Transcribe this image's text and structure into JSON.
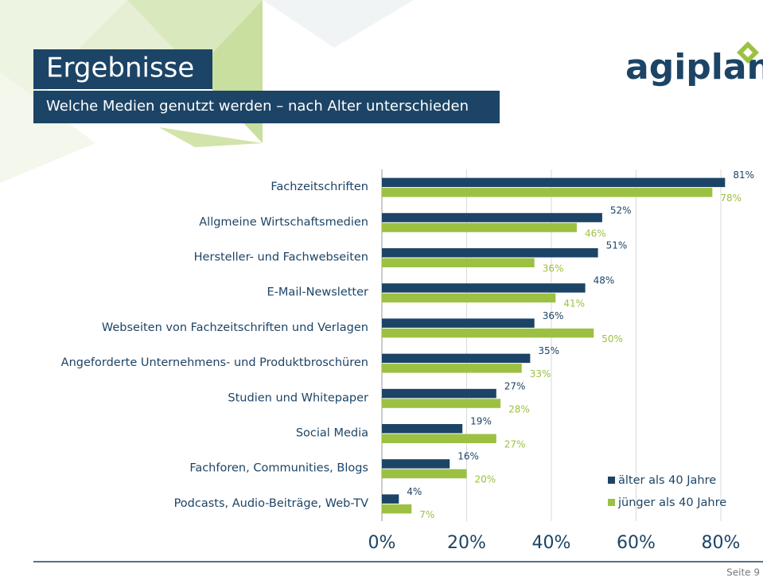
{
  "chart_data": {
    "type": "hbar",
    "title": "Ergebnisse",
    "subtitle": "Welche Medien genutzt werden – nach Alter unterschieden",
    "categories": [
      "Fachzeitschriften",
      "Allgmeine Wirtschaftsmedien",
      "Hersteller- und Fachwebseiten",
      "E-Mail-Newsletter",
      "Webseiten von Fachzeitschriften und Verlagen",
      "Angeforderte Unternehmens- und Produktbroschüren",
      "Studien und Whitepaper",
      "Social Media",
      "Fachforen, Communities, Blogs",
      "Podcasts, Audio-Beiträge, Web-TV"
    ],
    "series": [
      {
        "name": "älter als 40 Jahre",
        "color": "#1c4466",
        "values": [
          81,
          52,
          51,
          48,
          36,
          35,
          27,
          19,
          16,
          4
        ],
        "value_labels": [
          "81%",
          "52%",
          "51%",
          "48%",
          "36%",
          "35%",
          "27%",
          "19%",
          "16%",
          "4%"
        ]
      },
      {
        "name": "jünger als 40 Jahre",
        "color": "#9cc142",
        "values": [
          78,
          46,
          36,
          41,
          50,
          33,
          28,
          27,
          20,
          7
        ],
        "value_labels": [
          "78%",
          "46%",
          "36%",
          "41%",
          "50%",
          "33%",
          "28%",
          "27%",
          "20%",
          "7%"
        ]
      }
    ],
    "xlim": [
      0,
      88
    ],
    "xticks": [
      {
        "value": 0,
        "label": "0%"
      },
      {
        "value": 20,
        "label": "20%"
      },
      {
        "value": 40,
        "label": "40%"
      },
      {
        "value": 60,
        "label": "60%"
      },
      {
        "value": 80,
        "label": "80%"
      }
    ],
    "grid": true,
    "legend": "bottom-right"
  },
  "logo": "agiplan",
  "footer": "Seite 9"
}
